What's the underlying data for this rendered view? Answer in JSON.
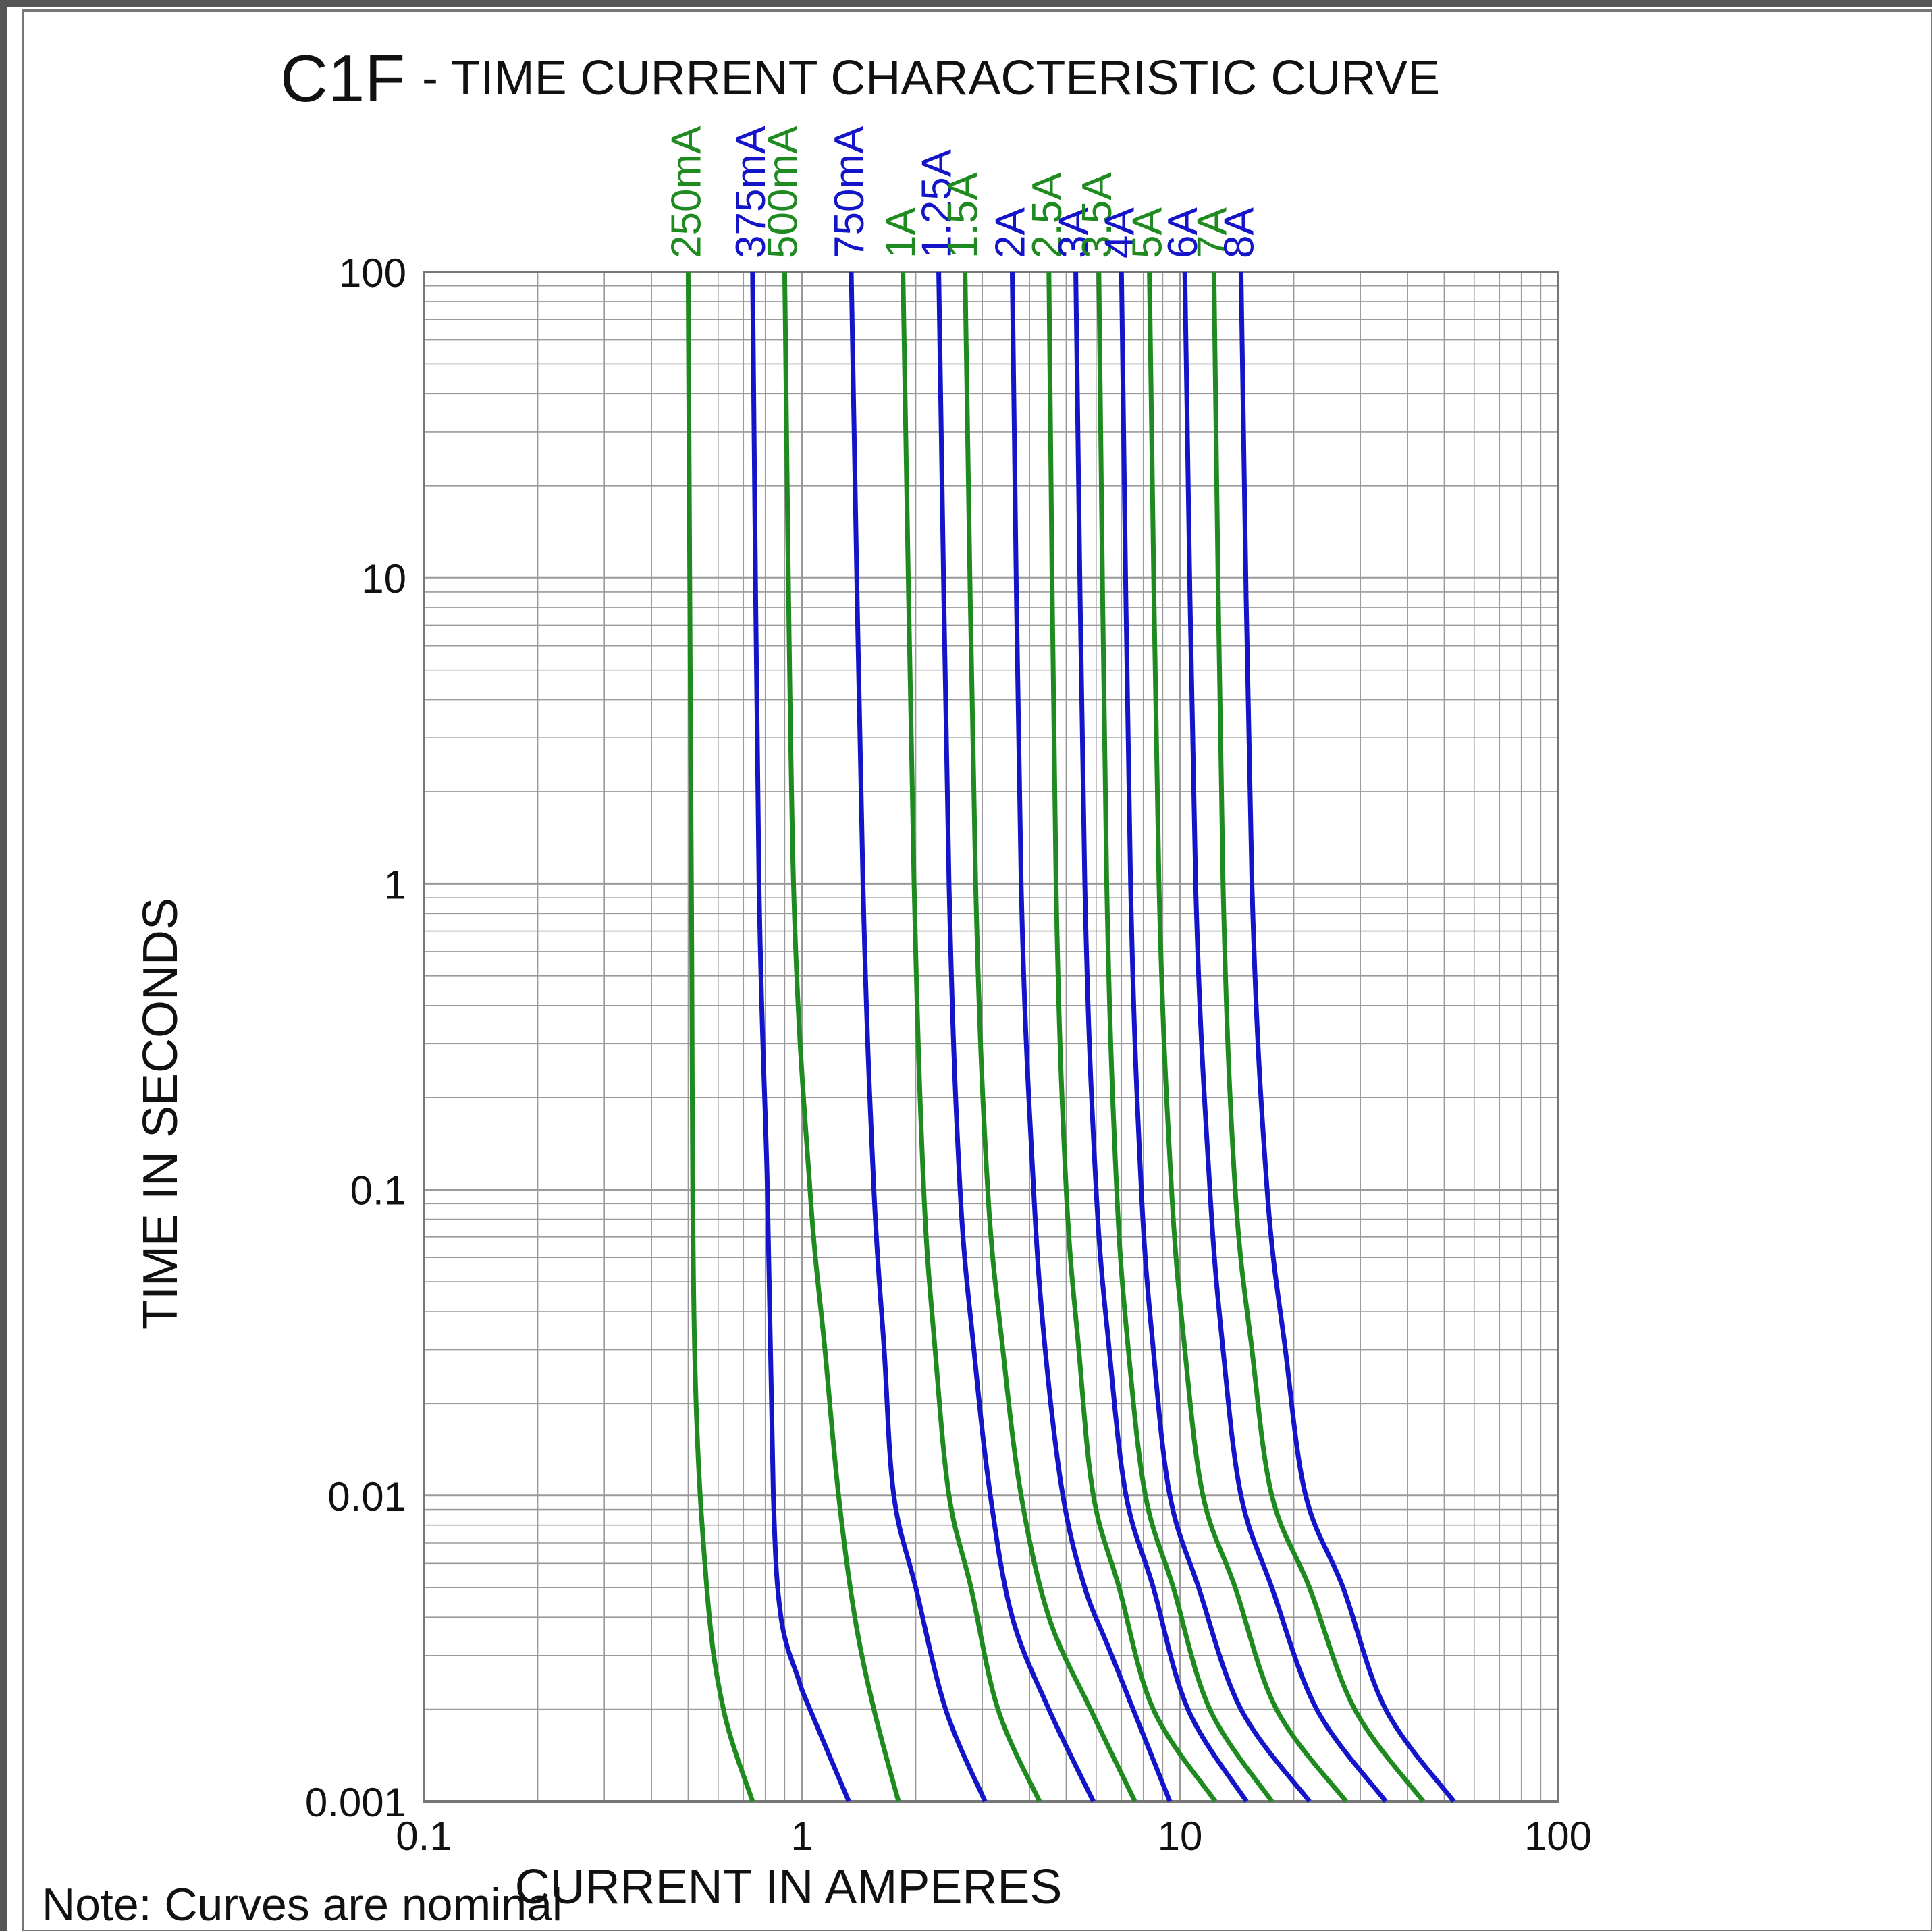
{
  "chart_data": {
    "type": "line",
    "title_main": "C1F",
    "title_rest": "- TIME CURRENT CHARACTERISTIC CURVE",
    "xlabel": "CURRENT IN AMPERES",
    "ylabel": "TIME IN SECONDS",
    "note": "Note: Curves are nominal",
    "x_scale": "log",
    "y_scale": "log",
    "xlim": [
      0.1,
      100
    ],
    "ylim": [
      0.001,
      100
    ],
    "x_ticks": [
      0.1,
      1,
      10,
      100
    ],
    "x_tick_labels": [
      "0.1",
      "1",
      "10",
      "100"
    ],
    "y_ticks": [
      0.001,
      0.01,
      0.1,
      1,
      10,
      100
    ],
    "y_tick_labels": [
      "0.001",
      "0.01",
      "0.1",
      "1",
      "10",
      "100"
    ],
    "grid": true,
    "colors": {
      "green": "#1f8a1f",
      "blue": "#1414c8",
      "grid": "#9a9a9a",
      "axis": "#777777"
    },
    "series": [
      {
        "name": "250mA",
        "color": "#1f8a1f",
        "points": [
          [
            0.5,
            100
          ],
          [
            0.51,
            1
          ],
          [
            0.52,
            0.03
          ],
          [
            0.56,
            0.005
          ],
          [
            0.62,
            0.002
          ],
          [
            0.74,
            0.001
          ]
        ]
      },
      {
        "name": "375mA",
        "color": "#1414c8",
        "points": [
          [
            0.74,
            100
          ],
          [
            0.77,
            1
          ],
          [
            0.81,
            0.1
          ],
          [
            0.84,
            0.01
          ],
          [
            0.88,
            0.004
          ],
          [
            0.98,
            0.0025
          ],
          [
            1.05,
            0.002
          ],
          [
            1.33,
            0.001
          ]
        ]
      },
      {
        "name": "500mA",
        "color": "#1f8a1f",
        "points": [
          [
            0.9,
            100
          ],
          [
            0.95,
            1
          ],
          [
            1.05,
            0.1
          ],
          [
            1.15,
            0.03
          ],
          [
            1.25,
            0.01
          ],
          [
            1.38,
            0.004
          ],
          [
            1.55,
            0.002
          ],
          [
            1.8,
            0.001
          ]
        ]
      },
      {
        "name": "750mA",
        "color": "#1414c8",
        "points": [
          [
            1.35,
            100
          ],
          [
            1.45,
            1
          ],
          [
            1.55,
            0.1
          ],
          [
            1.65,
            0.03
          ],
          [
            1.75,
            0.01
          ],
          [
            2.0,
            0.005
          ],
          [
            2.4,
            0.002
          ],
          [
            3.05,
            0.001
          ]
        ]
      },
      {
        "name": "1A",
        "color": "#1f8a1f",
        "points": [
          [
            1.85,
            100
          ],
          [
            1.98,
            1
          ],
          [
            2.1,
            0.1
          ],
          [
            2.25,
            0.03
          ],
          [
            2.45,
            0.01
          ],
          [
            2.8,
            0.005
          ],
          [
            3.3,
            0.002
          ],
          [
            4.25,
            0.001
          ]
        ]
      },
      {
        "name": "1.25A",
        "color": "#1414c8",
        "points": [
          [
            2.3,
            100
          ],
          [
            2.45,
            1
          ],
          [
            2.62,
            0.1
          ],
          [
            2.85,
            0.03
          ],
          [
            3.15,
            0.01
          ],
          [
            3.6,
            0.004
          ],
          [
            4.5,
            0.002
          ],
          [
            5.9,
            0.001
          ]
        ]
      },
      {
        "name": "1.5A",
        "color": "#1f8a1f",
        "points": [
          [
            2.7,
            100
          ],
          [
            2.88,
            1
          ],
          [
            3.1,
            0.1
          ],
          [
            3.4,
            0.03
          ],
          [
            3.8,
            0.01
          ],
          [
            4.5,
            0.004
          ],
          [
            5.8,
            0.002
          ],
          [
            7.6,
            0.001
          ]
        ]
      },
      {
        "name": "2A",
        "color": "#1414c8",
        "points": [
          [
            3.6,
            100
          ],
          [
            3.8,
            1
          ],
          [
            4.1,
            0.1
          ],
          [
            4.4,
            0.03
          ],
          [
            4.9,
            0.01
          ],
          [
            5.6,
            0.005
          ],
          [
            6.6,
            0.003
          ],
          [
            9.4,
            0.001
          ]
        ]
      },
      {
        "name": "2.5A",
        "color": "#1f8a1f",
        "points": [
          [
            4.5,
            100
          ],
          [
            4.7,
            1
          ],
          [
            5.0,
            0.1
          ],
          [
            5.4,
            0.03
          ],
          [
            5.9,
            0.01
          ],
          [
            6.9,
            0.005
          ],
          [
            8.5,
            0.002
          ],
          [
            12.4,
            0.001
          ]
        ]
      },
      {
        "name": "3A",
        "color": "#1414c8",
        "points": [
          [
            5.3,
            100
          ],
          [
            5.6,
            1
          ],
          [
            6.0,
            0.1
          ],
          [
            6.5,
            0.03
          ],
          [
            7.2,
            0.01
          ],
          [
            8.5,
            0.005
          ],
          [
            10.5,
            0.002
          ],
          [
            15.0,
            0.001
          ]
        ]
      },
      {
        "name": "3.5A",
        "color": "#1f8a1f",
        "points": [
          [
            6.1,
            100
          ],
          [
            6.4,
            1
          ],
          [
            6.8,
            0.1
          ],
          [
            7.3,
            0.03
          ],
          [
            8.1,
            0.01
          ],
          [
            9.6,
            0.005
          ],
          [
            12.0,
            0.002
          ],
          [
            17.5,
            0.001
          ]
        ]
      },
      {
        "name": "4A",
        "color": "#1414c8",
        "points": [
          [
            7.0,
            100
          ],
          [
            7.4,
            1
          ],
          [
            7.9,
            0.1
          ],
          [
            8.5,
            0.03
          ],
          [
            9.4,
            0.01
          ],
          [
            11.2,
            0.005
          ],
          [
            14.5,
            0.002
          ],
          [
            22.0,
            0.001
          ]
        ]
      },
      {
        "name": "5A",
        "color": "#1f8a1f",
        "points": [
          [
            8.3,
            100
          ],
          [
            8.8,
            1
          ],
          [
            9.5,
            0.1
          ],
          [
            10.3,
            0.03
          ],
          [
            11.5,
            0.01
          ],
          [
            14.0,
            0.005
          ],
          [
            18.0,
            0.002
          ],
          [
            27.5,
            0.001
          ]
        ]
      },
      {
        "name": "6A",
        "color": "#1414c8",
        "points": [
          [
            10.3,
            100
          ],
          [
            11.0,
            1
          ],
          [
            12.0,
            0.1
          ],
          [
            13.0,
            0.03
          ],
          [
            14.5,
            0.01
          ],
          [
            17.5,
            0.005
          ],
          [
            23.0,
            0.002
          ],
          [
            35.0,
            0.001
          ]
        ]
      },
      {
        "name": "7A",
        "color": "#1f8a1f",
        "points": [
          [
            12.3,
            100
          ],
          [
            13.0,
            1
          ],
          [
            14.0,
            0.1
          ],
          [
            15.5,
            0.03
          ],
          [
            17.5,
            0.01
          ],
          [
            22.0,
            0.005
          ],
          [
            29.0,
            0.002
          ],
          [
            44.0,
            0.001
          ]
        ]
      },
      {
        "name": "8A",
        "color": "#1414c8",
        "points": [
          [
            14.5,
            100
          ],
          [
            15.5,
            1
          ],
          [
            17.0,
            0.1
          ],
          [
            19.0,
            0.03
          ],
          [
            21.5,
            0.01
          ],
          [
            27.0,
            0.005
          ],
          [
            35.0,
            0.002
          ],
          [
            53.0,
            0.001
          ]
        ]
      }
    ]
  }
}
